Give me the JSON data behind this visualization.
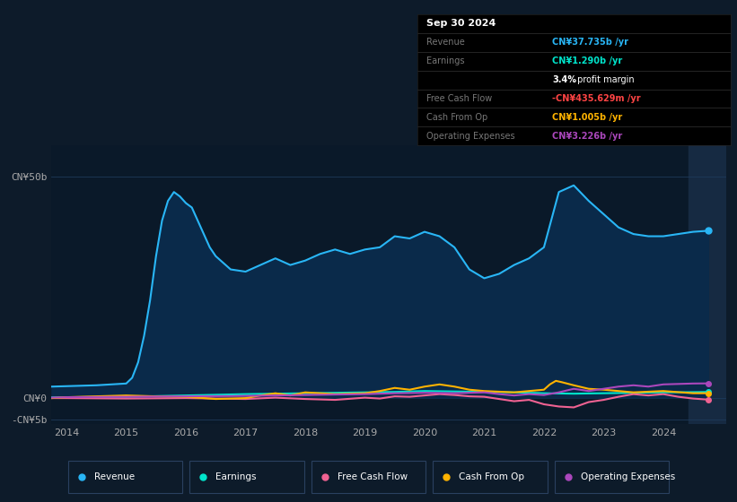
{
  "bg_color": "#0d1b2a",
  "plot_bg_color": "#0a1929",
  "grid_color": "#1e3a5a",
  "shaded_right_color": "#162a42",
  "revenue": {
    "x": [
      2013.75,
      2014.0,
      2014.25,
      2014.5,
      2014.75,
      2015.0,
      2015.1,
      2015.2,
      2015.3,
      2015.4,
      2015.5,
      2015.6,
      2015.7,
      2015.8,
      2015.9,
      2016.0,
      2016.1,
      2016.2,
      2016.3,
      2016.4,
      2016.5,
      2016.75,
      2017.0,
      2017.25,
      2017.5,
      2017.75,
      2018.0,
      2018.25,
      2018.5,
      2018.75,
      2019.0,
      2019.25,
      2019.5,
      2019.75,
      2020.0,
      2020.25,
      2020.5,
      2020.75,
      2021.0,
      2021.25,
      2021.5,
      2021.75,
      2022.0,
      2022.25,
      2022.5,
      2022.75,
      2023.0,
      2023.25,
      2023.5,
      2023.75,
      2024.0,
      2024.25,
      2024.5,
      2024.75
    ],
    "y": [
      2.5,
      2.6,
      2.7,
      2.8,
      3.0,
      3.2,
      4.5,
      8.0,
      14.0,
      22.0,
      32.0,
      40.0,
      44.5,
      46.5,
      45.5,
      44.0,
      43.0,
      40.0,
      37.0,
      34.0,
      32.0,
      29.0,
      28.5,
      30.0,
      31.5,
      30.0,
      31.0,
      32.5,
      33.5,
      32.5,
      33.5,
      34.0,
      36.5,
      36.0,
      37.5,
      36.5,
      34.0,
      29.0,
      27.0,
      28.0,
      30.0,
      31.5,
      34.0,
      46.5,
      48.0,
      44.5,
      41.5,
      38.5,
      37.0,
      36.5,
      36.5,
      37.0,
      37.5,
      37.735
    ],
    "color": "#29b6f6",
    "fill_color": "#0a2a4a",
    "linewidth": 1.5
  },
  "earnings": {
    "x": [
      2013.75,
      2014.0,
      2014.5,
      2015.0,
      2015.5,
      2016.0,
      2016.5,
      2017.0,
      2017.5,
      2018.0,
      2018.5,
      2019.0,
      2019.5,
      2020.0,
      2020.5,
      2021.0,
      2021.5,
      2022.0,
      2022.5,
      2023.0,
      2023.5,
      2024.0,
      2024.5,
      2024.75
    ],
    "y": [
      0.05,
      0.1,
      0.15,
      0.2,
      0.35,
      0.5,
      0.65,
      0.8,
      0.9,
      1.0,
      1.1,
      1.2,
      1.3,
      1.5,
      1.4,
      1.3,
      1.2,
      1.0,
      0.9,
      1.0,
      1.1,
      1.2,
      1.25,
      1.29
    ],
    "color": "#00e5cc",
    "linewidth": 1.5
  },
  "free_cash_flow": {
    "x": [
      2013.75,
      2014.0,
      2014.5,
      2015.0,
      2015.5,
      2016.0,
      2016.5,
      2017.0,
      2017.5,
      2018.0,
      2018.5,
      2019.0,
      2019.25,
      2019.5,
      2019.75,
      2020.0,
      2020.25,
      2020.5,
      2020.75,
      2021.0,
      2021.25,
      2021.5,
      2021.75,
      2022.0,
      2022.25,
      2022.5,
      2022.75,
      2023.0,
      2023.25,
      2023.5,
      2023.75,
      2024.0,
      2024.25,
      2024.5,
      2024.75
    ],
    "y": [
      -0.1,
      -0.1,
      -0.15,
      -0.2,
      -0.15,
      -0.1,
      -0.2,
      -0.3,
      0.0,
      -0.3,
      -0.5,
      0.0,
      -0.2,
      0.3,
      0.2,
      0.5,
      0.8,
      0.6,
      0.3,
      0.2,
      -0.3,
      -0.8,
      -0.5,
      -1.5,
      -2.0,
      -2.2,
      -1.0,
      -0.5,
      0.2,
      0.8,
      0.5,
      0.8,
      0.2,
      -0.2,
      -0.44
    ],
    "color": "#f06292",
    "linewidth": 1.5
  },
  "cash_from_op": {
    "x": [
      2013.75,
      2014.0,
      2014.5,
      2015.0,
      2015.5,
      2016.0,
      2016.5,
      2017.0,
      2017.25,
      2017.5,
      2017.75,
      2018.0,
      2018.5,
      2019.0,
      2019.25,
      2019.5,
      2019.75,
      2020.0,
      2020.25,
      2020.5,
      2020.75,
      2021.0,
      2021.5,
      2022.0,
      2022.1,
      2022.2,
      2022.3,
      2022.5,
      2022.75,
      2023.0,
      2023.5,
      2024.0,
      2024.5,
      2024.75
    ],
    "y": [
      -0.1,
      0.1,
      0.3,
      0.5,
      0.3,
      0.2,
      -0.3,
      -0.1,
      0.5,
      1.0,
      0.5,
      1.2,
      0.8,
      1.0,
      1.5,
      2.2,
      1.8,
      2.5,
      3.0,
      2.5,
      1.8,
      1.5,
      1.2,
      1.8,
      3.0,
      3.8,
      3.5,
      2.8,
      2.0,
      1.8,
      1.2,
      1.5,
      1.0,
      1.005
    ],
    "color": "#ffb300",
    "linewidth": 1.5
  },
  "operating_expenses": {
    "x": [
      2013.75,
      2014.0,
      2014.5,
      2015.0,
      2015.5,
      2016.0,
      2016.5,
      2017.0,
      2017.5,
      2018.0,
      2018.5,
      2019.0,
      2019.5,
      2020.0,
      2020.5,
      2021.0,
      2021.25,
      2021.5,
      2021.75,
      2022.0,
      2022.25,
      2022.5,
      2022.75,
      2023.0,
      2023.25,
      2023.5,
      2023.75,
      2024.0,
      2024.25,
      2024.5,
      2024.75
    ],
    "y": [
      0.0,
      0.1,
      0.15,
      0.2,
      0.25,
      0.3,
      0.35,
      0.4,
      0.5,
      0.6,
      0.7,
      0.8,
      1.0,
      1.1,
      1.0,
      1.2,
      0.8,
      0.5,
      0.8,
      0.6,
      1.2,
      2.0,
      1.5,
      2.0,
      2.5,
      2.8,
      2.5,
      3.0,
      3.1,
      3.2,
      3.226
    ],
    "color": "#ab47bc",
    "linewidth": 1.5
  },
  "legend": [
    {
      "label": "Revenue",
      "color": "#29b6f6"
    },
    {
      "label": "Earnings",
      "color": "#00e5cc"
    },
    {
      "label": "Free Cash Flow",
      "color": "#f06292"
    },
    {
      "label": "Cash From Op",
      "color": "#ffb300"
    },
    {
      "label": "Operating Expenses",
      "color": "#ab47bc"
    }
  ],
  "xlabel_years": [
    2014,
    2015,
    2016,
    2017,
    2018,
    2019,
    2020,
    2021,
    2022,
    2023,
    2024
  ],
  "info_box": {
    "date": "Sep 30 2024",
    "date_color": "#ffffff",
    "bg_color": "#000000",
    "separator_color": "#333333",
    "label_color": "#777777",
    "rows": [
      {
        "label": "Revenue",
        "value": "CN¥37.735b /yr",
        "value_color": "#29b6f6",
        "suffix": "",
        "suffix_color": "#aaaaaa"
      },
      {
        "label": "Earnings",
        "value": "CN¥1.290b /yr",
        "value_color": "#00e5cc",
        "suffix": "",
        "suffix_color": "#aaaaaa"
      },
      {
        "label": "",
        "value": "3.4%",
        "value_color": "#ffffff",
        "suffix": " profit margin",
        "suffix_color": "#ffffff"
      },
      {
        "label": "Free Cash Flow",
        "value": "-CN¥435.629m /yr",
        "value_color": "#ff4444",
        "suffix": "",
        "suffix_color": "#aaaaaa"
      },
      {
        "label": "Cash From Op",
        "value": "CN¥1.005b /yr",
        "value_color": "#ffb300",
        "suffix": "",
        "suffix_color": "#aaaaaa"
      },
      {
        "label": "Operating Expenses",
        "value": "CN¥3.226b /yr",
        "value_color": "#ab47bc",
        "suffix": "",
        "suffix_color": "#aaaaaa"
      }
    ]
  }
}
